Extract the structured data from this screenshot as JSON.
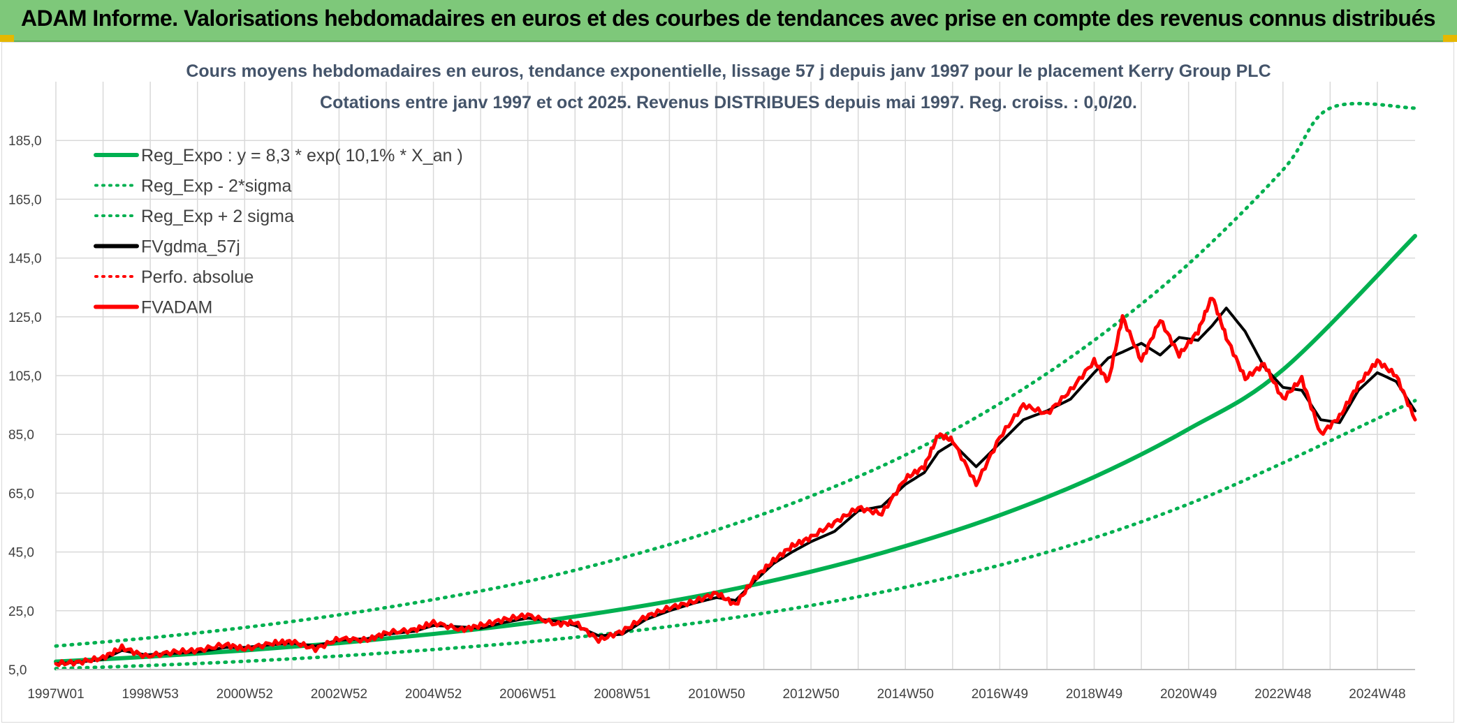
{
  "banner": {
    "title": "ADAM Informe. Valorisations hebdomadaires en euros et des courbes de tendances avec prise en compte des revenus connus distribués"
  },
  "colors": {
    "banner_bg": "#7ec87a",
    "reg_green": "#00b050",
    "fv_black": "#000000",
    "fvadam_red": "#ff0000",
    "grid": "#d9d9d9"
  },
  "chart_data": {
    "type": "line",
    "title": "Cours moyens hebdomadaires en euros, tendance exponentielle, lissage 57 j depuis janv 1997 pour le placement Kerry Group PLC",
    "subtitle": "Cotations entre janv 1997 et oct 2025. Revenus DISTRIBUES depuis mai 1997. Reg. croiss. : 0,0/20.",
    "xlabel": "",
    "ylabel": "",
    "xlim": [
      1997.0,
      2025.8
    ],
    "ylim": [
      5,
      205
    ],
    "y_ticks": [
      5,
      25,
      45,
      65,
      85,
      105,
      125,
      145,
      165,
      185
    ],
    "y_tick_labels": [
      "5,0",
      "25,0",
      "45,0",
      "65,0",
      "85,0",
      "105,0",
      "125,0",
      "145,0",
      "165,0",
      "185,0"
    ],
    "x_ticks": [
      1997.0,
      1999.0,
      2001.0,
      2003.0,
      2005.0,
      2007.0,
      2009.0,
      2011.0,
      2013.0,
      2015.0,
      2017.0,
      2019.0,
      2021.0,
      2023.0,
      2025.0
    ],
    "x_tick_labels": [
      "1997W01",
      "1998W53",
      "2000W52",
      "2002W52",
      "2004W52",
      "2006W51",
      "2008W51",
      "2010W50",
      "2012W50",
      "2014W50",
      "2016W49",
      "2018W49",
      "2020W49",
      "2022W48",
      "2024W48"
    ],
    "legend_position": "top-left",
    "legend": [
      {
        "label": "Reg_Expo : y = 8,3 * exp( 10,1% *  X_an )",
        "color": "#00b050",
        "style": "solid"
      },
      {
        "label": "Reg_Exp - 2*sigma",
        "color": "#00b050",
        "style": "dotted"
      },
      {
        "label": "Reg_Exp + 2 sigma",
        "color": "#00b050",
        "style": "dotted"
      },
      {
        "label": "FVgdma_57j",
        "color": "#000000",
        "style": "solid"
      },
      {
        "label": "Perfo. absolue",
        "color": "#ff0000",
        "style": "dotted"
      },
      {
        "label": "FVADAM",
        "color": "#ff0000",
        "style": "solid"
      }
    ],
    "series": [
      {
        "name": "Reg_Expo",
        "x": [
          1997.0,
          1999.0,
          2001.0,
          2003.0,
          2005.0,
          2007.0,
          2009.0,
          2011.0,
          2013.0,
          2015.0,
          2017.0,
          2019.0,
          2021.0,
          2023.0,
          2025.8
        ],
        "values": [
          7.7,
          9.4,
          11.5,
          14.0,
          17.1,
          20.8,
          25.5,
          31.2,
          38.3,
          47.0,
          57.5,
          70.5,
          86.8,
          107.0,
          152.5
        ]
      },
      {
        "name": "Reg_Exp - 2*sigma",
        "x": [
          1997.0,
          1999.0,
          2001.0,
          2003.0,
          2005.0,
          2007.0,
          2009.0,
          2011.0,
          2013.0,
          2015.0,
          2017.0,
          2019.0,
          2021.0,
          2023.0,
          2025.8
        ],
        "values": [
          5.3,
          6.4,
          7.8,
          9.6,
          11.8,
          14.4,
          17.7,
          21.8,
          26.8,
          33.0,
          40.5,
          49.8,
          61.3,
          75.3,
          96.5
        ]
      },
      {
        "name": "Reg_Exp + 2 sigma",
        "x": [
          1997.0,
          1999.0,
          2001.0,
          2003.0,
          2005.0,
          2007.0,
          2009.0,
          2011.0,
          2013.0,
          2015.0,
          2017.0,
          2019.0,
          2021.0,
          2023.0,
          2024.0,
          2025.8
        ],
        "values": [
          13.0,
          15.8,
          19.3,
          23.6,
          28.8,
          35.0,
          43.0,
          52.5,
          64.0,
          78.0,
          95.5,
          117.0,
          143.0,
          175.0,
          196.0,
          196.0
        ]
      },
      {
        "name": "FVgdma_57j",
        "x": [
          1997.0,
          1997.5,
          1998.0,
          1998.4,
          1998.9,
          1999.5,
          2000.0,
          2000.6,
          2001.0,
          2001.6,
          2002.0,
          2002.5,
          2003.0,
          2003.6,
          2004.0,
          2004.6,
          2005.0,
          2005.6,
          2006.0,
          2006.5,
          2007.0,
          2007.6,
          2008.0,
          2008.5,
          2009.0,
          2009.5,
          2010.0,
          2010.5,
          2011.0,
          2011.4,
          2011.8,
          2012.2,
          2012.6,
          2013.0,
          2013.5,
          2014.0,
          2014.5,
          2015.0,
          2015.4,
          2015.7,
          2016.0,
          2016.5,
          2017.0,
          2017.5,
          2018.0,
          2018.5,
          2019.0,
          2019.3,
          2019.6,
          2020.0,
          2020.4,
          2020.8,
          2021.2,
          2021.5,
          2021.8,
          2022.2,
          2022.6,
          2023.0,
          2023.4,
          2023.8,
          2024.2,
          2024.6,
          2025.0,
          2025.4,
          2025.8
        ],
        "values": [
          7.0,
          7.5,
          8.5,
          11.5,
          10.0,
          10.5,
          11.0,
          12.5,
          12.5,
          13.5,
          14.0,
          13.0,
          15.0,
          15.5,
          17.0,
          18.0,
          20.0,
          19.5,
          19.0,
          21.0,
          22.5,
          21.5,
          20.0,
          16.5,
          17.0,
          22.0,
          25.0,
          27.5,
          29.5,
          28.5,
          35.0,
          41.0,
          45.0,
          48.5,
          52.0,
          59.0,
          60.5,
          68.0,
          72.0,
          79.0,
          82.0,
          74.0,
          82.0,
          90.0,
          93.0,
          97.0,
          106.0,
          111.0,
          113.0,
          116.0,
          112.0,
          118.0,
          117.0,
          122.0,
          128.0,
          120.0,
          108.0,
          101.0,
          100.0,
          90.0,
          89.0,
          100.0,
          106.0,
          103.0,
          93.0
        ]
      },
      {
        "name": "FVADAM",
        "x": [
          1997.0,
          1997.5,
          1998.0,
          1998.4,
          1998.9,
          1999.5,
          2000.0,
          2000.6,
          2001.0,
          2001.6,
          2002.0,
          2002.5,
          2003.0,
          2003.6,
          2004.0,
          2004.6,
          2005.0,
          2005.6,
          2006.0,
          2006.5,
          2007.0,
          2007.6,
          2008.0,
          2008.5,
          2009.0,
          2009.5,
          2010.0,
          2010.5,
          2011.0,
          2011.4,
          2011.8,
          2012.2,
          2012.6,
          2013.0,
          2013.5,
          2014.0,
          2014.5,
          2015.0,
          2015.4,
          2015.7,
          2016.0,
          2016.5,
          2017.0,
          2017.5,
          2018.0,
          2018.5,
          2019.0,
          2019.3,
          2019.6,
          2020.0,
          2020.4,
          2020.8,
          2021.2,
          2021.5,
          2021.8,
          2022.2,
          2022.6,
          2023.0,
          2023.4,
          2023.8,
          2024.2,
          2024.6,
          2025.0,
          2025.4,
          2025.8
        ],
        "values": [
          7.0,
          7.5,
          9.0,
          12.5,
          9.5,
          11.0,
          11.5,
          13.5,
          12.0,
          14.0,
          14.5,
          12.0,
          15.5,
          15.0,
          17.5,
          18.5,
          21.0,
          18.5,
          20.0,
          22.0,
          23.5,
          20.5,
          21.0,
          15.0,
          18.0,
          23.0,
          26.0,
          28.0,
          31.0,
          27.0,
          36.0,
          42.0,
          47.0,
          50.0,
          55.0,
          60.0,
          58.0,
          70.0,
          74.0,
          85.0,
          83.0,
          68.0,
          84.0,
          95.0,
          92.0,
          100.0,
          110.0,
          103.0,
          125.0,
          110.0,
          124.0,
          112.0,
          120.0,
          132.0,
          118.0,
          104.0,
          109.0,
          97.0,
          104.0,
          85.0,
          91.0,
          102.0,
          110.0,
          105.0,
          90.0
        ]
      }
    ]
  }
}
